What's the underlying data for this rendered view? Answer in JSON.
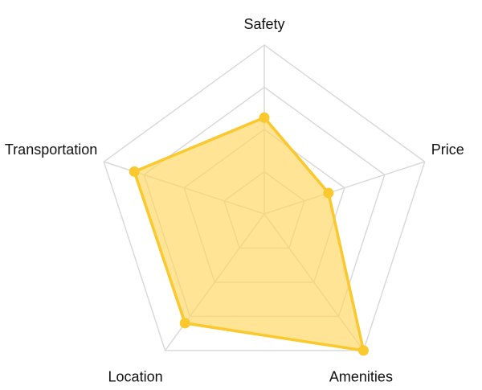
{
  "chart_data": {
    "type": "radar",
    "axes": [
      "Safety",
      "Price",
      "Amenities",
      "Location",
      "Transportation"
    ],
    "rlim": [
      0,
      100
    ],
    "grid_levels": 4,
    "series": [
      {
        "values": [
          57,
          40,
          100,
          80,
          81
        ]
      }
    ],
    "legend": "none",
    "colors": {
      "line": "#fbc82d",
      "fill": "#fdd55a",
      "fill_opacity": 0.65,
      "grid": "#d9d9d9",
      "label": "#111111"
    }
  }
}
